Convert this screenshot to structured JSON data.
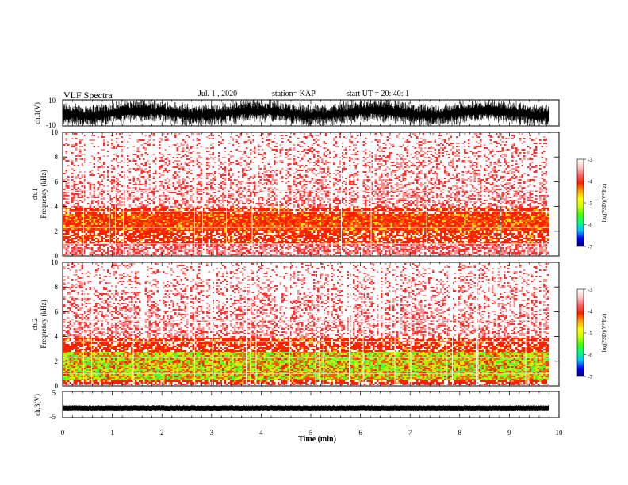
{
  "header": {
    "title": "VLF Spectra",
    "date": "Jul.  1  , 2020",
    "station": "station= KAP",
    "start": "start  UT  =   20: 40: 1"
  },
  "colorbar": {
    "label": "log(PSD)(V²/Hz)",
    "ticks": [
      "-3",
      "-4",
      "-5",
      "-6",
      "-7"
    ],
    "stops": [
      "#000080",
      "#0000ff",
      "#00c0ff",
      "#00ff80",
      "#40ff00",
      "#c8ff00",
      "#ffff00",
      "#ffa000",
      "#ff2000",
      "#ff6060",
      "#ffc8c8",
      "#ffffff"
    ]
  },
  "chart_data": [
    {
      "type": "line",
      "panel": "ch1-waveform",
      "ylabel": "ch.1(V)",
      "ylim": [
        -10,
        10
      ],
      "ytick_labels": [
        "10",
        "-10"
      ],
      "description_values": {
        "amplitude_min": -10,
        "amplitude_max": 10
      }
    },
    {
      "type": "heatmap",
      "panel": "ch1-spectrogram",
      "ylabel_top": "ch.1",
      "ylabel": "Frequency  (kHz)",
      "ylim": [
        0,
        10
      ],
      "ytick_labels": [
        "0",
        "2",
        "4",
        "6",
        "8",
        "10"
      ],
      "xlim": [
        0,
        10
      ],
      "intense_band_khz": [
        1,
        4
      ],
      "peak_band_khz": [
        2,
        3.5
      ]
    },
    {
      "type": "heatmap",
      "panel": "ch2-spectrogram",
      "ylabel_top": "ch.2",
      "ylabel": "Frequency  (kHz)",
      "ylim": [
        0,
        10
      ],
      "ytick_labels": [
        "0",
        "2",
        "4",
        "6",
        "8",
        "10"
      ],
      "xlim": [
        0,
        10
      ],
      "intense_band_khz": [
        0.3,
        4
      ],
      "peak_band_khz": [
        0.5,
        2.8
      ]
    },
    {
      "type": "line",
      "panel": "ch3-waveform",
      "ylabel": "ch.3(V)",
      "ylim": [
        -5,
        5
      ],
      "ytick_labels": [
        "5",
        "-5"
      ],
      "baseline_v": -1.3,
      "xlabel": "Time  (min)",
      "xlim": [
        0,
        10
      ],
      "xtick_labels": [
        "0",
        "1",
        "2",
        "3",
        "4",
        "5",
        "6",
        "7",
        "8",
        "9",
        "10"
      ],
      "data_end_min": 9.8
    }
  ]
}
